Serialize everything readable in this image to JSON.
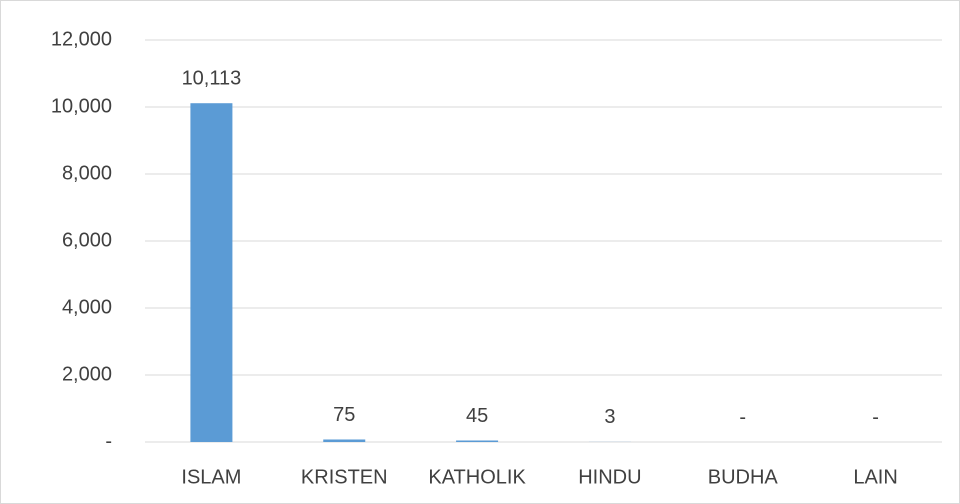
{
  "chart_data": {
    "type": "bar",
    "categories": [
      "ISLAM",
      "KRISTEN",
      "KATHOLIK",
      "HINDU",
      "BUDHA",
      "LAIN"
    ],
    "values": [
      10113,
      75,
      45,
      3,
      0,
      0
    ],
    "value_labels": [
      "10,113",
      "75",
      "45",
      "3",
      "-",
      "-"
    ],
    "color": "#5b9bd5",
    "ylim": [
      0,
      12000
    ],
    "yticks": [
      {
        "value": 0,
        "label": "-"
      },
      {
        "value": 2000,
        "label": "2,000"
      },
      {
        "value": 4000,
        "label": "4,000"
      },
      {
        "value": 6000,
        "label": "6,000"
      },
      {
        "value": 8000,
        "label": "8,000"
      },
      {
        "value": 10000,
        "label": "10,000"
      },
      {
        "value": 12000,
        "label": "12,000"
      }
    ],
    "grid": true
  }
}
